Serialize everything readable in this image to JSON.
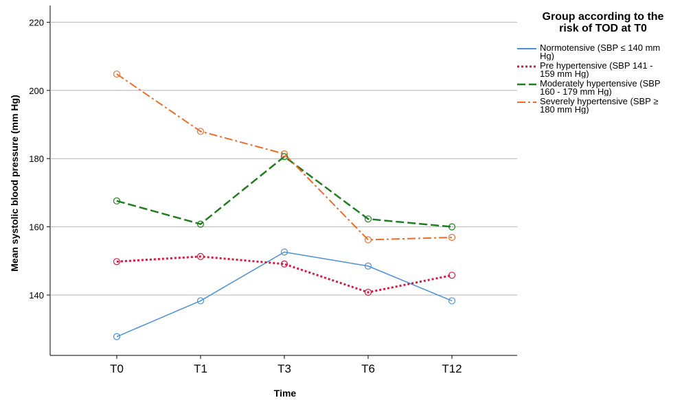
{
  "chart_data": {
    "type": "line",
    "title": "",
    "xlabel": "Time",
    "ylabel": "Mean systolic blood pressure (mm Hg)",
    "categories": [
      "T0",
      "T1",
      "T3",
      "T6",
      "T12"
    ],
    "yticks": [
      140,
      160,
      180,
      200,
      220
    ],
    "ylim": [
      123,
      225
    ],
    "grid": "horizontal",
    "legend_position": "right",
    "series": [
      {
        "name": "Normotensive (SBP ≤ 140 mm\nHg)",
        "values": [
          127.8,
          138.3,
          152.6,
          148.5,
          138.3
        ],
        "color": "#4a90d9",
        "dash": "solid",
        "width": 1.5
      },
      {
        "name": "Pre hypertensive (SBP 141 -\n159 mm Hg)",
        "values": [
          149.8,
          151.3,
          149.1,
          140.8,
          145.8
        ],
        "color": "#d7193f",
        "dash": "dotted",
        "width": 3
      },
      {
        "name": "Moderately hypertensive (SBP\n160 - 179 mm Hg)",
        "values": [
          167.6,
          160.8,
          180.6,
          162.3,
          160.0
        ],
        "color": "#1e7d1e",
        "dash": "dashed",
        "width": 2.5
      },
      {
        "name": "Severely hypertensive (SBP ≥\n180 mm Hg)",
        "values": [
          204.8,
          188.0,
          181.4,
          156.2,
          156.9
        ],
        "color": "#f06a28",
        "dash": "dashdot",
        "width": 2
      }
    ]
  },
  "legend": {
    "title_line1": "Group according to the",
    "title_line2": "risk of TOD at T0"
  }
}
